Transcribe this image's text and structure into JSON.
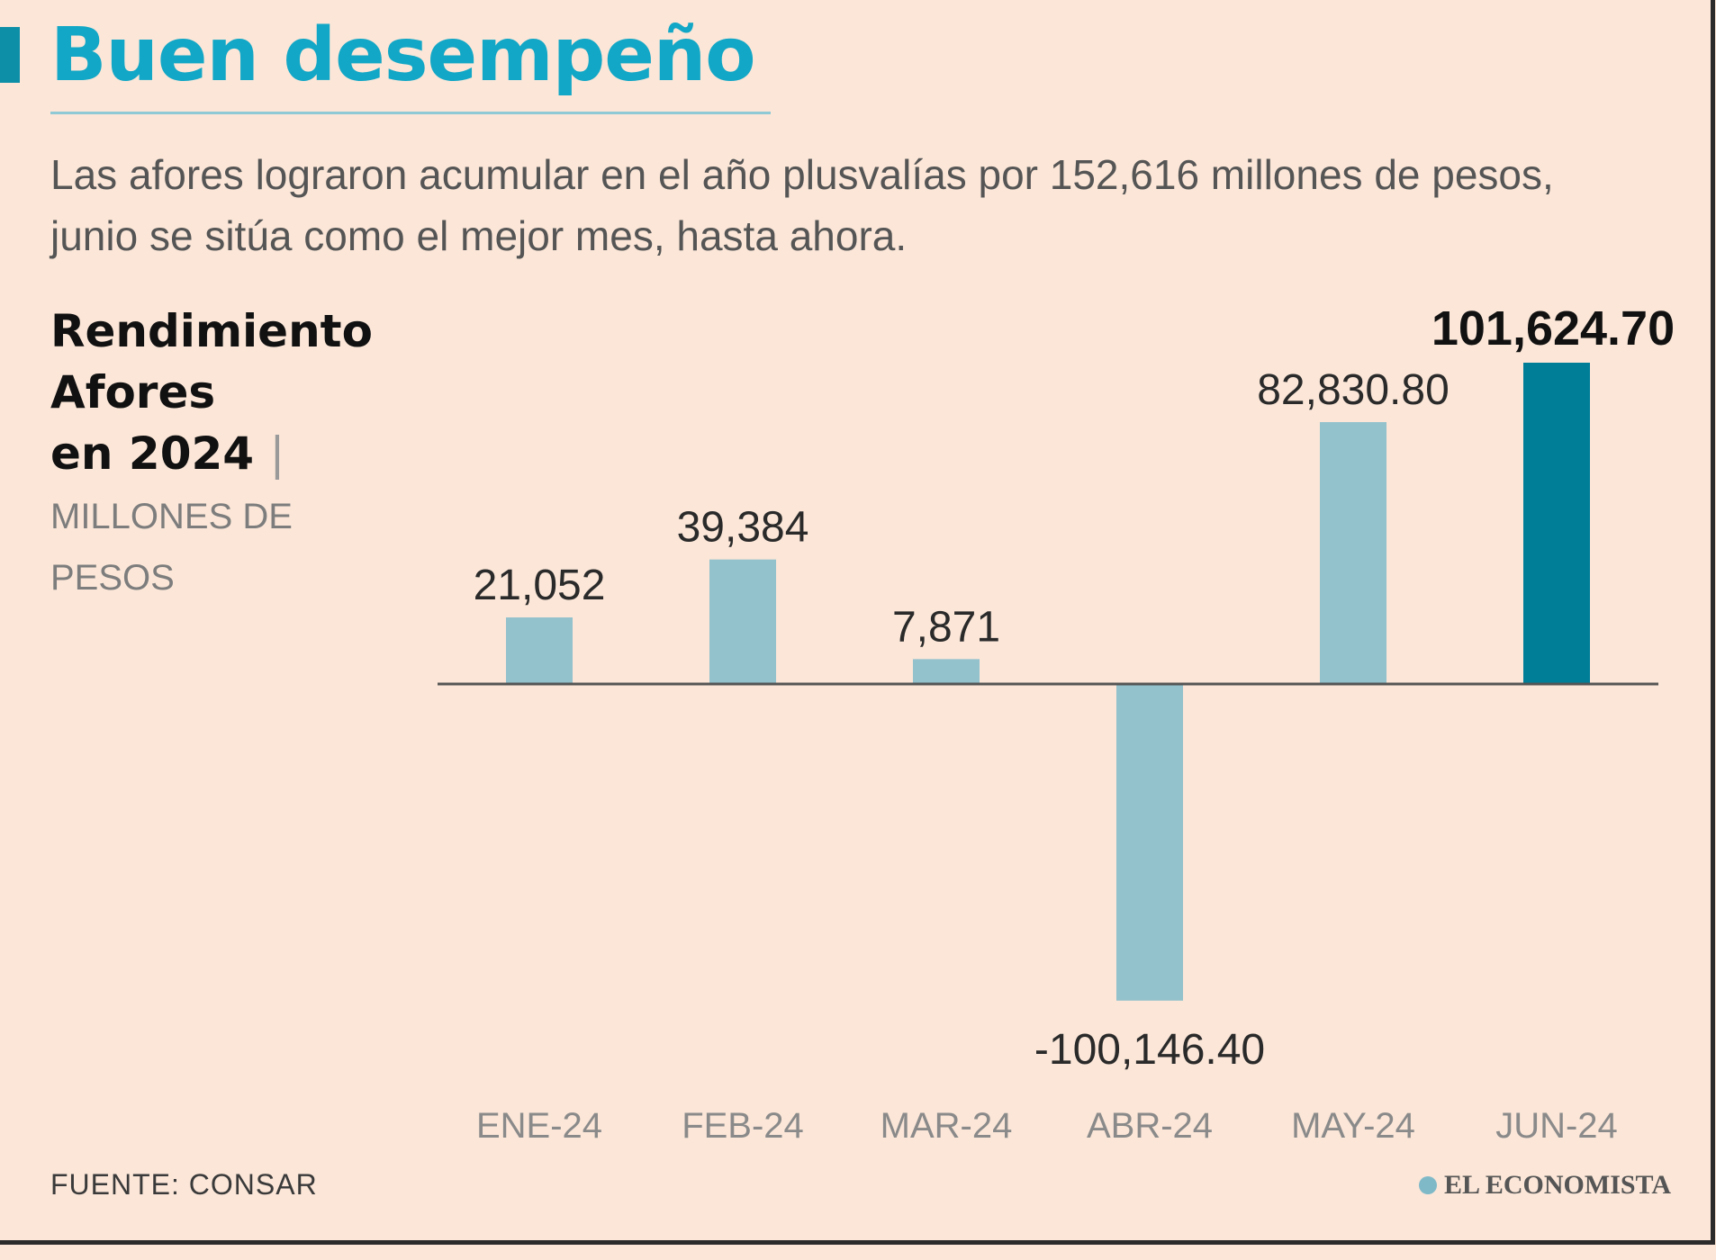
{
  "header": {
    "title": "Buen desempeño",
    "subtitle": "Las afores lograron acumular en el año plusvalías por 152,616 millones de pesos,  junio se sitúa como el mejor mes, hasta ahora."
  },
  "chart_header": {
    "line1": "Rendimiento",
    "line2": "Afores",
    "line3": "en 2024",
    "units_line1": "MILLONES DE",
    "units_line2": "PESOS"
  },
  "footer": {
    "source": "FUENTE: CONSAR",
    "brand": "EL ECONOMISTA"
  },
  "colors": {
    "background": "#fbe6d8",
    "bar": "#93c1cc",
    "bar_highlight": "#007e98",
    "title": "#12a7c6",
    "axis": "#555555"
  },
  "chart_data": {
    "type": "bar",
    "title": "Rendimiento Afores en 2024",
    "ylabel": "MILLONES DE PESOS",
    "categories": [
      "ENE-24",
      "FEB-24",
      "MAR-24",
      "ABR-24",
      "MAY-24",
      "JUN-24"
    ],
    "values": [
      21052,
      39384,
      7871,
      -100146.4,
      82830.8,
      101624.7
    ],
    "value_labels": [
      "21,052",
      "39,384",
      "7,871",
      "-100,146.40",
      "82,830.80",
      "101,624.70"
    ],
    "highlight_index": 5,
    "ylim": [
      -100146.4,
      101624.7
    ],
    "grid": false,
    "legend": "none"
  }
}
